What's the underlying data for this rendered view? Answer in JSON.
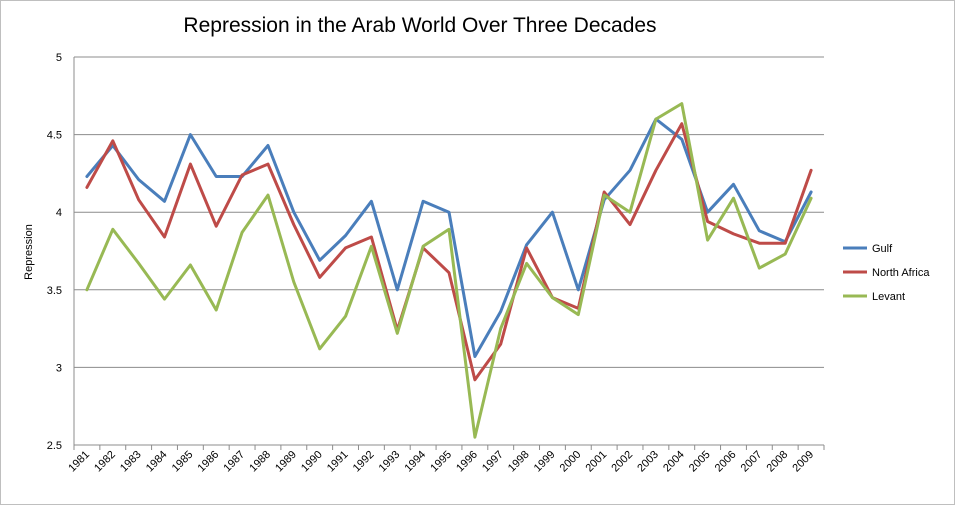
{
  "chart_data": {
    "type": "line",
    "title": "Repression in the Arab World Over Three Decades",
    "xlabel": "",
    "ylabel": "Repression",
    "ylim": [
      2.5,
      5
    ],
    "yticks": [
      "2.5",
      "3",
      "3.5",
      "4",
      "4.5",
      "5"
    ],
    "grid": true,
    "legend": "right",
    "x": [
      "1981",
      "1982",
      "1983",
      "1984",
      "1985",
      "1986",
      "1987",
      "1988",
      "1989",
      "1990",
      "1991",
      "1992",
      "1993",
      "1994",
      "1995",
      "1996",
      "1997",
      "1998",
      "1999",
      "2000",
      "2001",
      "2002",
      "2003",
      "2004",
      "2005",
      "2006",
      "2007",
      "2008",
      "2009"
    ],
    "series": [
      {
        "name": "Gulf",
        "color": "#4a7ebb",
        "values": [
          4.23,
          4.43,
          4.21,
          4.07,
          4.5,
          4.23,
          4.23,
          4.43,
          4.0,
          3.69,
          3.85,
          4.07,
          3.5,
          4.07,
          4.0,
          3.07,
          3.36,
          3.79,
          4.0,
          3.5,
          4.08,
          4.27,
          4.6,
          4.47,
          4.0,
          4.18,
          3.88,
          3.81,
          4.13
        ]
      },
      {
        "name": "North Africa",
        "color": "#be4b48",
        "values": [
          4.16,
          4.46,
          4.08,
          3.84,
          4.31,
          3.91,
          4.24,
          4.31,
          3.92,
          3.58,
          3.77,
          3.84,
          3.24,
          3.77,
          3.61,
          2.92,
          3.15,
          3.77,
          3.45,
          3.38,
          4.13,
          3.92,
          4.27,
          4.57,
          3.94,
          3.86,
          3.8,
          3.8,
          4.27
        ]
      },
      {
        "name": "Levant",
        "color": "#98b954",
        "values": [
          3.5,
          3.89,
          3.67,
          3.44,
          3.66,
          3.37,
          3.87,
          4.11,
          3.55,
          3.12,
          3.33,
          3.78,
          3.22,
          3.78,
          3.89,
          2.55,
          3.25,
          3.67,
          3.45,
          3.34,
          4.11,
          4.0,
          4.6,
          4.7,
          3.82,
          4.09,
          3.64,
          3.73,
          4.09
        ]
      }
    ]
  }
}
